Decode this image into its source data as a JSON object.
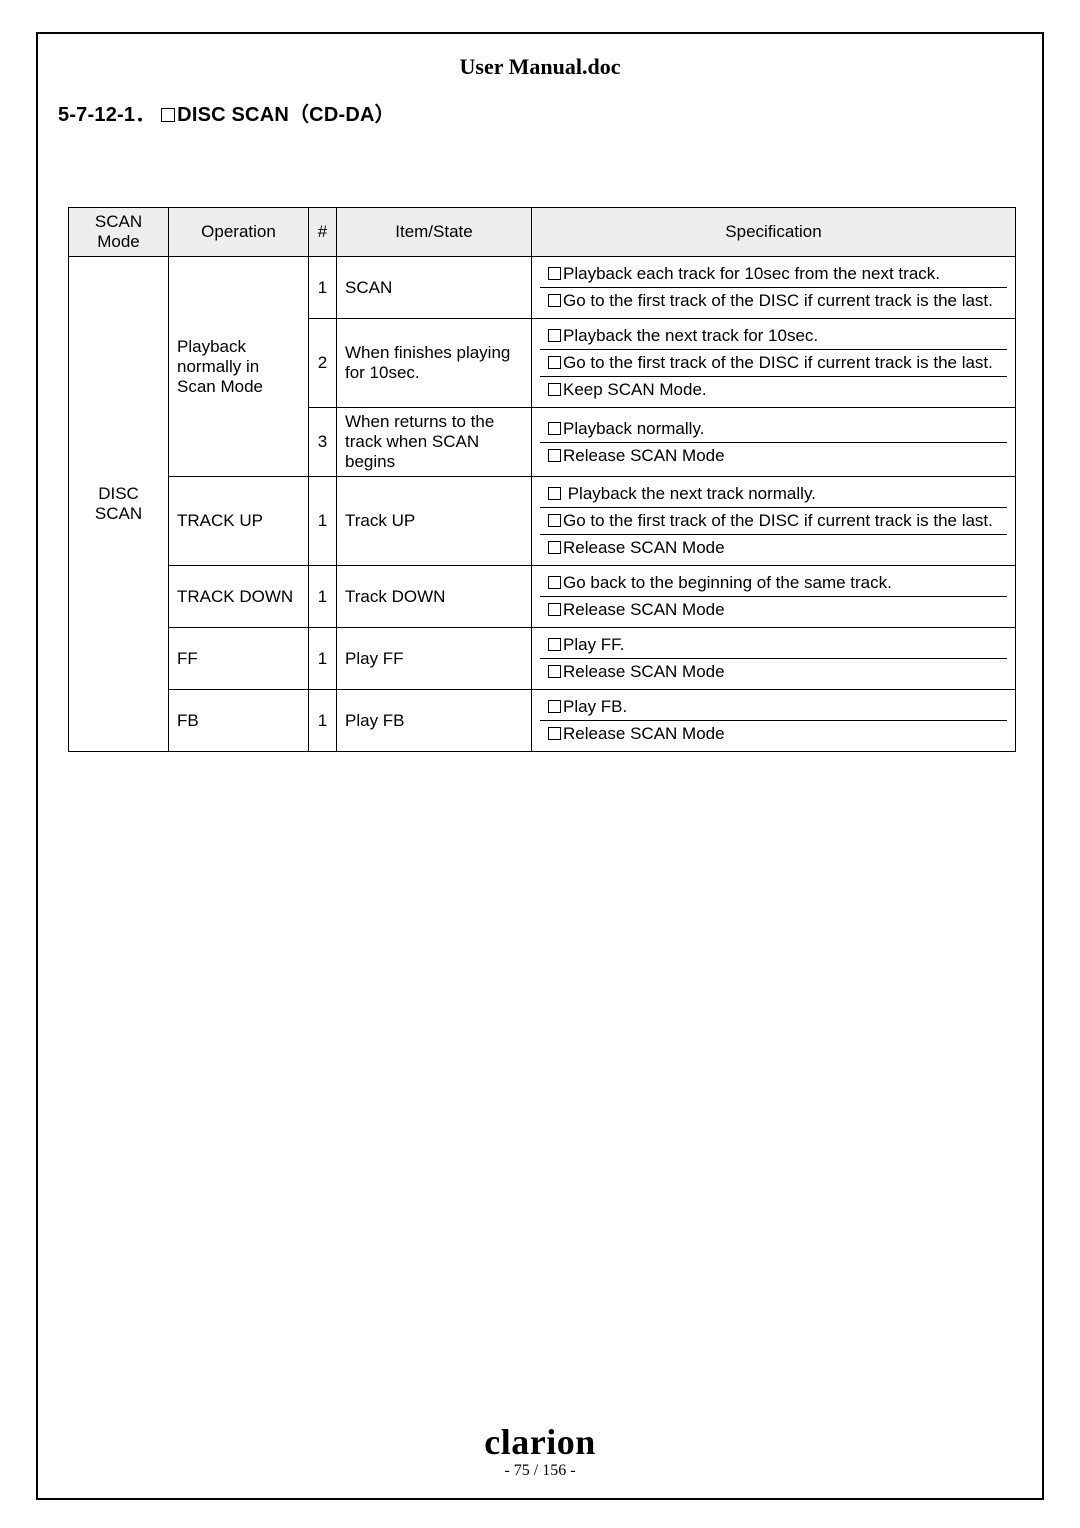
{
  "doc_title": "User Manual.doc",
  "section_number": "5-7-12-1．",
  "section_label": "DISC SCAN（CD-DA）",
  "headers": {
    "scan_mode": "SCAN Mode",
    "operation": "Operation",
    "num": "#",
    "item_state": "Item/State",
    "specification": "Specification"
  },
  "scan_mode_label": "DISC SCAN",
  "rows": [
    {
      "operation": "Playback normally in Scan Mode",
      "sub": [
        {
          "num": "1",
          "item": "SCAN",
          "specs": [
            "Playback each track for 10sec from the next track.",
            "Go to the first track of the DISC if current track is the last."
          ]
        },
        {
          "num": "2",
          "item": "When finishes playing for 10sec.",
          "specs": [
            "Playback the next track for 10sec.",
            "Go to the first track of the DISC if current track is the last.",
            "Keep SCAN Mode."
          ]
        },
        {
          "num": "3",
          "item": "When returns to the track when SCAN begins",
          "specs": [
            "Playback normally.",
            "Release SCAN Mode"
          ]
        }
      ]
    },
    {
      "operation": "TRACK UP",
      "sub": [
        {
          "num": "1",
          "item": "Track UP",
          "specs": [
            " Playback the next track normally.",
            "Go to the first track of the DISC if current track is the last.",
            "Release SCAN Mode"
          ]
        }
      ]
    },
    {
      "operation": "TRACK DOWN",
      "sub": [
        {
          "num": "1",
          "item": "Track DOWN",
          "specs": [
            "Go back to the beginning of the same track.",
            "Release SCAN Mode"
          ]
        }
      ]
    },
    {
      "operation": "FF",
      "sub": [
        {
          "num": "1",
          "item": "Play FF",
          "specs": [
            "Play FF.",
            "Release SCAN Mode"
          ]
        }
      ]
    },
    {
      "operation": "FB",
      "sub": [
        {
          "num": "1",
          "item": "Play FB",
          "specs": [
            "Play FB.",
            "Release SCAN Mode"
          ]
        }
      ]
    }
  ],
  "logo_text": "clarion",
  "page_current": "75",
  "page_total": "156",
  "colors": {
    "header_bg": "#eeeeee",
    "border": "#000000",
    "text": "#000000",
    "bg": "#ffffff"
  }
}
